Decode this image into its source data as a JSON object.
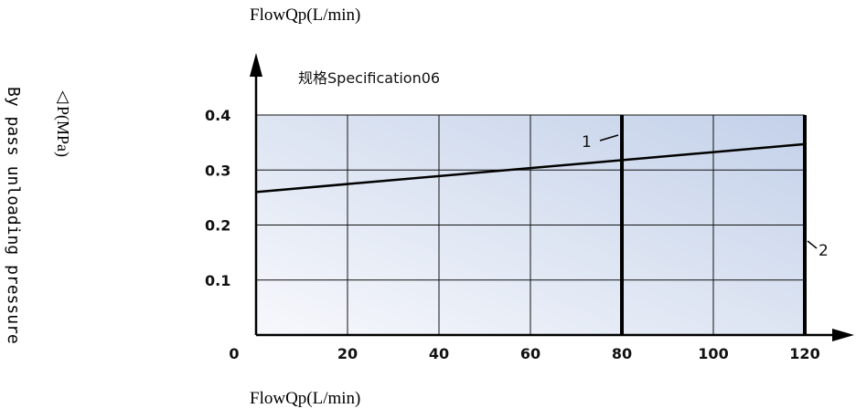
{
  "header": {
    "top_title": "FlowQp(L/min)"
  },
  "footer": {
    "bottom_title": "FlowQp(L/min)"
  },
  "y_axis_text": {
    "line1": "△P(MPa)",
    "line2": "By pass unloading pressure"
  },
  "chart_data": {
    "type": "line",
    "title": "规格Specification06",
    "xlabel": "FlowQp(L/min)",
    "ylabel": "△P(MPa)",
    "xlim": [
      0,
      120
    ],
    "ylim": [
      0,
      0.4
    ],
    "x_ticks": [
      "0",
      "20",
      "40",
      "60",
      "80",
      "100",
      "120"
    ],
    "y_ticks": [
      "0.1",
      "0.2",
      "0.3",
      "0.4"
    ],
    "grid": true,
    "series": [
      {
        "x": [
          0,
          120
        ],
        "y": [
          0.26,
          0.347
        ]
      }
    ],
    "vertical_markers": [
      {
        "x": 80,
        "label": "1"
      },
      {
        "x": 120,
        "label": "2"
      }
    ],
    "colors": {
      "fill_start": "#f7f8fc",
      "fill_end": "#c3d1e9",
      "line": "#000000"
    }
  }
}
